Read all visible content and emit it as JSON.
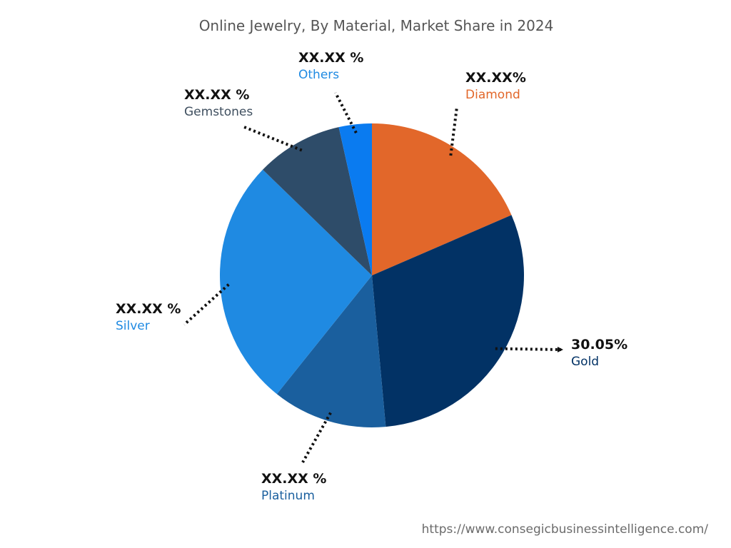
{
  "chart_data": {
    "type": "pie",
    "title": "Online Jewelry, By Material, Market Share in 2024",
    "slices": [
      {
        "label": "Diamond",
        "value_label": "XX.XX%",
        "share": 18.5,
        "color": "#E2672A"
      },
      {
        "label": "Gold",
        "value_label": "30.05%",
        "share": 30.05,
        "color": "#023265"
      },
      {
        "label": "Platinum",
        "value_label": "XX.XX %",
        "share": 12.2,
        "color": "#1A5F9E"
      },
      {
        "label": "Silver",
        "value_label": "XX.XX %",
        "share": 26.5,
        "color": "#1F8AE2"
      },
      {
        "label": "Gemstones",
        "value_label": "XX.XX %",
        "share": 9.25,
        "color": "#2E4C69"
      },
      {
        "label": "Others",
        "value_label": "XX.XX %",
        "share": 3.5,
        "color": "#0A7BF0"
      }
    ],
    "label_colors": {
      "Diamond": "#E2672A",
      "Gold": "#023265",
      "Platinum": "#1A5F9E",
      "Silver": "#1F8AE2",
      "Gemstones": "#3F4F5F",
      "Others": "#1F8AE2"
    }
  },
  "footer": {
    "url": "https://www.consegicbusinessintelligence.com/"
  }
}
